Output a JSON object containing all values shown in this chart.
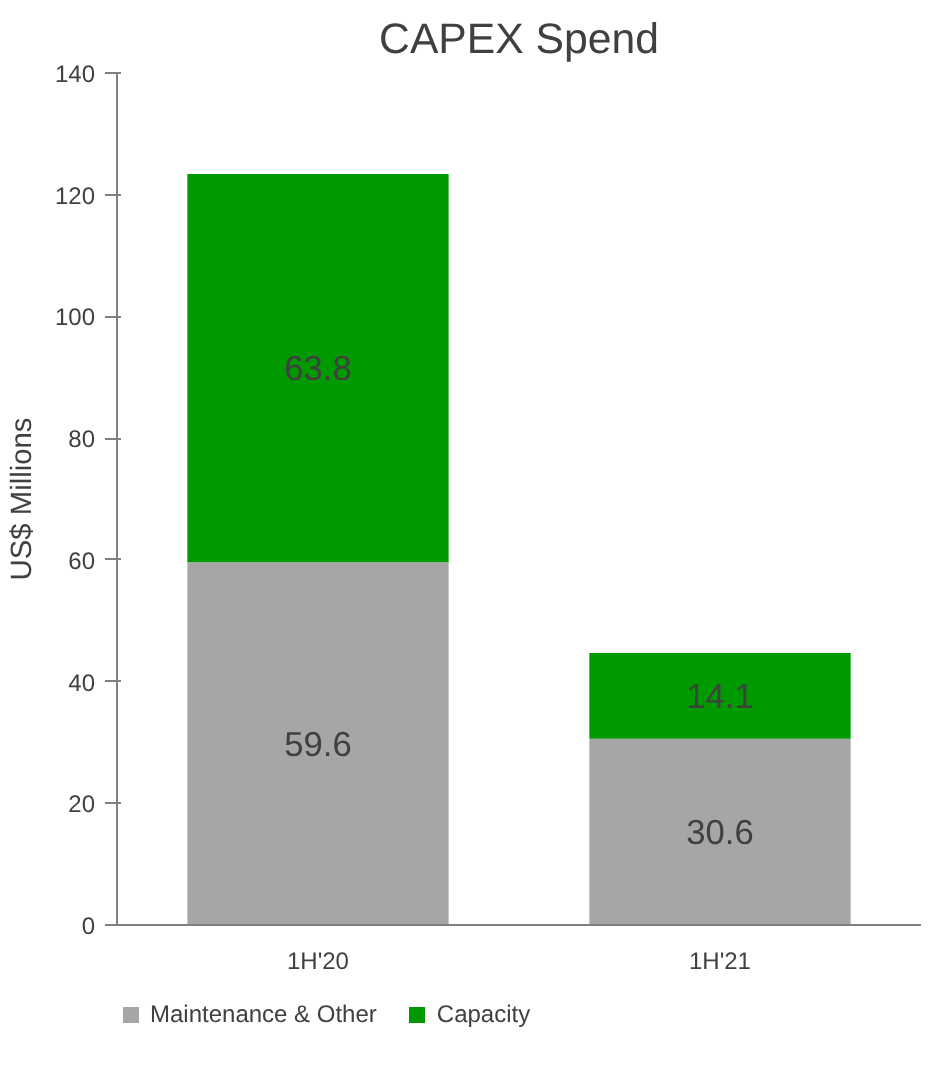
{
  "chart_data": {
    "type": "bar",
    "title": "CAPEX Spend",
    "ylabel": "US$ Millions",
    "categories": [
      "1H'20",
      "1H'21"
    ],
    "series": [
      {
        "name": "Maintenance & Other",
        "color": "#a6a6a6",
        "values": [
          59.6,
          30.6
        ]
      },
      {
        "name": "Capacity",
        "color": "#009900",
        "values": [
          63.8,
          14.1
        ]
      }
    ],
    "stacked": true,
    "ylim": [
      0,
      140
    ],
    "yticks": [
      0,
      20,
      40,
      60,
      80,
      100,
      120,
      140
    ],
    "data_labels": true,
    "legend": "bottom",
    "grid": false
  }
}
